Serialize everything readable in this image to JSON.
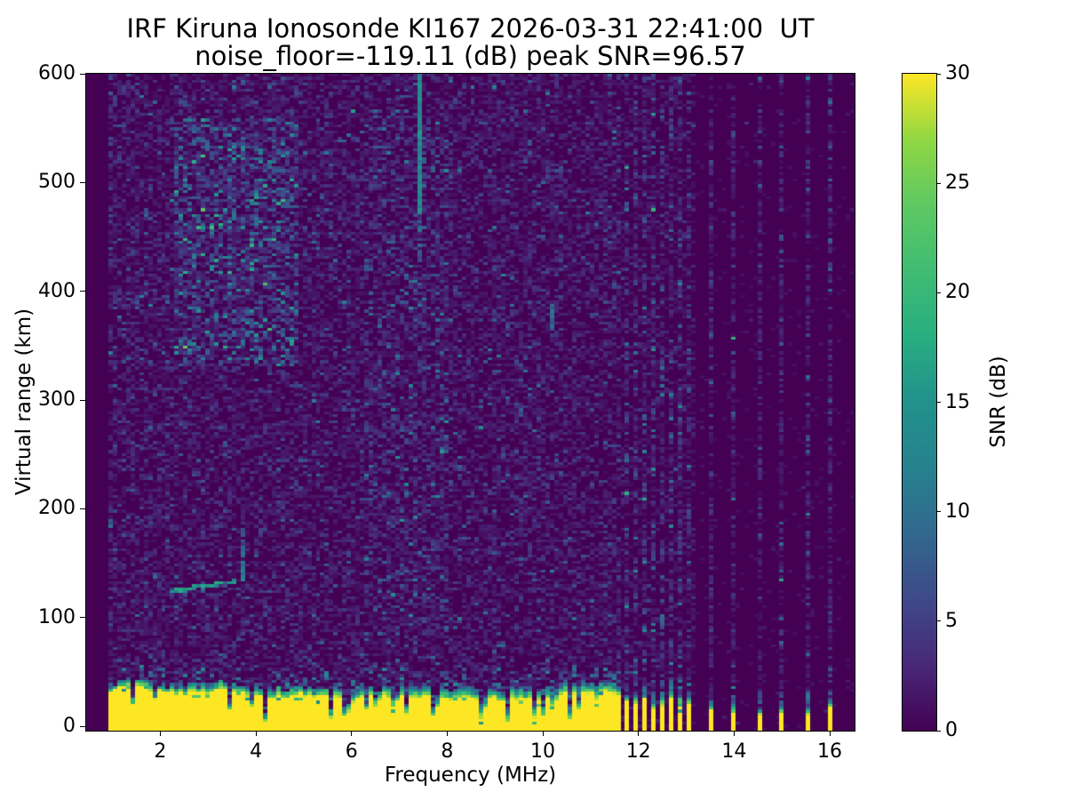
{
  "figure": {
    "background": "#ffffff",
    "text_color": "#000000"
  },
  "chart_data": {
    "type": "heatmap",
    "title_line1": "IRF Kiruna Ionosonde KI167 2026-03-31 22:41:00  UT",
    "title_line2": "noise_floor=-119.11 (dB) peak SNR=96.57",
    "station": "IRF Kiruna Ionosonde KI167",
    "timestamp_ut": "2026-03-31 22:41:00",
    "noise_floor_db": -119.11,
    "peak_snr_db": 96.57,
    "xlabel": "Frequency (MHz)",
    "ylabel": "Virtual range (km)",
    "xlim": [
      0.45,
      16.52
    ],
    "ylim": [
      -4,
      600
    ],
    "x_ticks": [
      2,
      4,
      6,
      8,
      10,
      12,
      14,
      16
    ],
    "y_ticks": [
      0,
      100,
      200,
      300,
      400,
      500,
      600
    ],
    "colorbar": {
      "label": "SNR (dB)",
      "vmin": 0,
      "vmax": 30,
      "ticks": [
        0,
        5,
        10,
        15,
        20,
        25,
        30
      ],
      "colormap": "viridis"
    },
    "viridis_stops": [
      [
        0.0,
        "#440154"
      ],
      [
        0.1,
        "#482878"
      ],
      [
        0.2,
        "#3e4989"
      ],
      [
        0.3,
        "#31688e"
      ],
      [
        0.4,
        "#26828e"
      ],
      [
        0.5,
        "#21918c"
      ],
      [
        0.6,
        "#28ae80"
      ],
      [
        0.7,
        "#3fbc73"
      ],
      [
        0.8,
        "#5ec962"
      ],
      [
        0.9,
        "#90d743"
      ],
      [
        1.0,
        "#fde725"
      ]
    ],
    "features": {
      "min_transmit_freq_mhz": 0.92,
      "sweep_end_mhz": 11.62,
      "ground_clutter": {
        "base_top_km": 33,
        "top_slope_km_per_mhz": -0.8,
        "fringe_km": 8,
        "snr_db": 30,
        "notch_prob": 0.15
      },
      "cluster_stripes_mhz": [
        11.75,
        11.93,
        12.12,
        12.3,
        12.49,
        12.68,
        12.86,
        13.05
      ],
      "isolated_stripes_mhz": [
        13.48,
        13.98,
        14.5,
        15.0,
        15.52,
        16.02
      ],
      "echo_trace": {
        "f_start_mhz": 2.1,
        "f_end_mhz": 3.6,
        "km_start": 123,
        "km_end": 133,
        "snr_db": 15
      },
      "echo_spread": {
        "f_mhz": 3.72,
        "km_min": 133,
        "km_max": 183,
        "snr_db": 10
      },
      "rfi_streaks": [
        {
          "f_mhz": 7.44,
          "km_min": 470,
          "km_max": 600,
          "snr_db": 13,
          "fade_to_km": 425
        },
        {
          "f_mhz": 10.17,
          "km_min": 363,
          "km_max": 388,
          "snr_db": 9
        }
      ],
      "noise_patches": [
        {
          "f_min": 2.3,
          "f_max": 4.9,
          "km_min": 330,
          "km_max": 560,
          "boost": 2.3
        },
        {
          "f_min": 6.3,
          "f_max": 8.0,
          "km_min": 90,
          "km_max": 560,
          "boost": 1.35
        }
      ],
      "noise_mean_db": 1.6,
      "grid": {
        "ncols": 174,
        "nrows": 220
      },
      "seed": 167
    }
  }
}
